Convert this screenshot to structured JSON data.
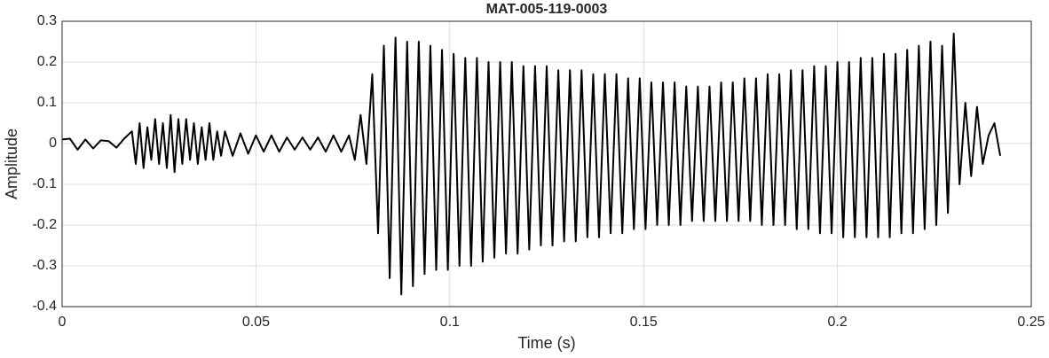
{
  "chart_data": {
    "type": "line",
    "title": "MAT-005-119-0003",
    "x_label": "Time (s)",
    "y_label": "Amplitude",
    "color": "#000000",
    "grid": true,
    "xlim": [
      0,
      0.25
    ],
    "ylim": [
      -0.4,
      0.3
    ],
    "xticks": [
      0,
      0.05,
      0.1,
      0.15,
      0.2,
      0.25
    ],
    "yticks": [
      -0.4,
      -0.3,
      -0.2,
      -0.1,
      0,
      0.1,
      0.2,
      0.3
    ],
    "x": [
      0,
      0.002,
      0.004,
      0.006,
      0.008,
      0.01,
      0.012,
      0.014,
      0.016,
      0.018,
      0.019,
      0.02,
      0.021,
      0.022,
      0.023,
      0.024,
      0.025,
      0.026,
      0.027,
      0.028,
      0.029,
      0.03,
      0.031,
      0.032,
      0.033,
      0.034,
      0.035,
      0.036,
      0.037,
      0.038,
      0.039,
      0.04,
      0.041,
      0.042,
      0.044,
      0.046,
      0.048,
      0.05,
      0.052,
      0.054,
      0.056,
      0.058,
      0.06,
      0.062,
      0.064,
      0.066,
      0.068,
      0.07,
      0.072,
      0.074,
      0.0755,
      0.077,
      0.0785,
      0.08,
      0.0815,
      0.083,
      0.0845,
      0.086,
      0.0875,
      0.089,
      0.0905,
      0.092,
      0.0935,
      0.095,
      0.0965,
      0.098,
      0.0995,
      0.101,
      0.1025,
      0.104,
      0.1055,
      0.107,
      0.1085,
      0.11,
      0.1115,
      0.113,
      0.1145,
      0.116,
      0.1175,
      0.119,
      0.1205,
      0.122,
      0.1235,
      0.125,
      0.1265,
      0.128,
      0.1295,
      0.131,
      0.1325,
      0.134,
      0.1355,
      0.137,
      0.1385,
      0.14,
      0.1415,
      0.143,
      0.1445,
      0.146,
      0.1475,
      0.149,
      0.1505,
      0.152,
      0.1535,
      0.155,
      0.1565,
      0.158,
      0.1595,
      0.161,
      0.1625,
      0.164,
      0.1655,
      0.167,
      0.1685,
      0.17,
      0.1715,
      0.173,
      0.1745,
      0.176,
      0.1775,
      0.179,
      0.1805,
      0.182,
      0.1835,
      0.185,
      0.1865,
      0.188,
      0.1895,
      0.191,
      0.1925,
      0.194,
      0.1955,
      0.197,
      0.1985,
      0.2,
      0.2015,
      0.203,
      0.2045,
      0.206,
      0.2075,
      0.209,
      0.2105,
      0.212,
      0.2135,
      0.215,
      0.2165,
      0.218,
      0.2195,
      0.221,
      0.2225,
      0.224,
      0.2255,
      0.227,
      0.2285,
      0.23,
      0.2315,
      0.233,
      0.2345,
      0.236,
      0.2375,
      0.239,
      0.2405,
      0.242
    ],
    "values": [
      0.01,
      0.012,
      -0.015,
      0.01,
      -0.012,
      0.008,
      0.006,
      -0.01,
      0.012,
      0.03,
      -0.05,
      0.05,
      -0.06,
      0.04,
      -0.04,
      0.06,
      -0.05,
      0.05,
      -0.06,
      0.07,
      -0.07,
      0.06,
      -0.05,
      0.06,
      -0.04,
      0.05,
      -0.05,
      0.04,
      -0.04,
      0.05,
      -0.04,
      0.03,
      -0.03,
      0.03,
      -0.03,
      0.025,
      -0.025,
      0.02,
      -0.02,
      0.02,
      -0.02,
      0.015,
      -0.015,
      0.015,
      -0.015,
      0.015,
      -0.02,
      0.02,
      -0.02,
      0.02,
      -0.04,
      0.07,
      -0.05,
      0.17,
      -0.22,
      0.24,
      -0.33,
      0.26,
      -0.37,
      0.25,
      -0.35,
      0.25,
      -0.32,
      0.24,
      -0.31,
      0.23,
      -0.31,
      0.22,
      -0.3,
      0.21,
      -0.3,
      0.21,
      -0.29,
      0.2,
      -0.28,
      0.2,
      -0.27,
      0.2,
      -0.27,
      0.19,
      -0.26,
      0.19,
      -0.25,
      0.19,
      -0.25,
      0.18,
      -0.24,
      0.18,
      -0.24,
      0.18,
      -0.23,
      0.17,
      -0.23,
      0.17,
      -0.22,
      0.17,
      -0.22,
      0.16,
      -0.21,
      0.16,
      -0.21,
      0.15,
      -0.2,
      0.15,
      -0.2,
      0.15,
      -0.2,
      0.14,
      -0.19,
      0.14,
      -0.19,
      0.14,
      -0.19,
      0.15,
      -0.19,
      0.15,
      -0.19,
      0.16,
      -0.19,
      0.16,
      -0.2,
      0.17,
      -0.2,
      0.17,
      -0.2,
      0.18,
      -0.21,
      0.18,
      -0.21,
      0.19,
      -0.22,
      0.19,
      -0.22,
      0.2,
      -0.23,
      0.2,
      -0.23,
      0.21,
      -0.23,
      0.21,
      -0.23,
      0.22,
      -0.23,
      0.22,
      -0.22,
      0.23,
      -0.22,
      0.24,
      -0.21,
      0.25,
      -0.2,
      0.24,
      -0.17,
      0.27,
      -0.1,
      0.1,
      -0.08,
      0.09,
      -0.05,
      0.02,
      0.05,
      -0.03
    ]
  }
}
